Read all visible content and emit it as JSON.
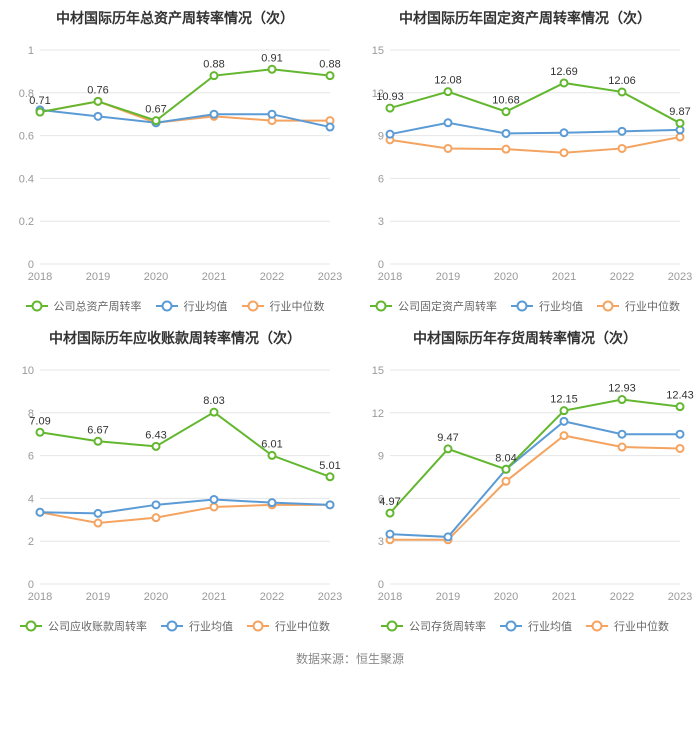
{
  "footer_text": "数据来源：恒生聚源",
  "global": {
    "background_color": "#ffffff",
    "grid_color": "#e6e6e6",
    "axis_text_color": "#999999",
    "label_text_color": "#333333",
    "title_fontsize": 14,
    "axis_fontsize": 11,
    "point_label_fontsize": 11,
    "line_width": 2,
    "marker_radius": 3.5,
    "categories": [
      "2018",
      "2019",
      "2020",
      "2021",
      "2022",
      "2023"
    ],
    "colors": {
      "company": "#63b72f",
      "avg": "#5b9bd5",
      "median": "#f4a460"
    },
    "legend_labels": {
      "avg": "行业均值",
      "median": "行业中位数"
    }
  },
  "charts": [
    {
      "id": "total_asset",
      "title": "中材国际历年总资产周转率情况（次）",
      "company_legend": "公司总资产周转率",
      "ylim": [
        0,
        1
      ],
      "yticks": [
        0,
        0.2,
        0.4,
        0.6,
        0.8,
        1
      ],
      "company": [
        0.71,
        0.76,
        0.67,
        0.88,
        0.91,
        0.88
      ],
      "avg": [
        0.72,
        0.69,
        0.66,
        0.7,
        0.7,
        0.64
      ],
      "median": [
        0.71,
        0.76,
        0.66,
        0.69,
        0.67,
        0.67
      ],
      "label_series": "company"
    },
    {
      "id": "fixed_asset",
      "title": "中材国际历年固定资产周转率情况（次）",
      "company_legend": "公司固定资产周转率",
      "ylim": [
        0,
        15
      ],
      "yticks": [
        0,
        3,
        6,
        9,
        12,
        15
      ],
      "company": [
        10.93,
        12.08,
        10.68,
        12.69,
        12.06,
        9.87
      ],
      "avg": [
        9.1,
        9.9,
        9.15,
        9.2,
        9.3,
        9.4
      ],
      "median": [
        8.7,
        8.1,
        8.05,
        7.8,
        8.1,
        8.9
      ],
      "label_series": "company"
    },
    {
      "id": "receivable",
      "title": "中材国际历年应收账款周转率情况（次）",
      "company_legend": "公司应收账款周转率",
      "ylim": [
        0,
        10
      ],
      "yticks": [
        0,
        2,
        4,
        6,
        8,
        10
      ],
      "company": [
        7.09,
        6.67,
        6.43,
        8.03,
        6.01,
        5.01
      ],
      "avg": [
        3.35,
        3.3,
        3.7,
        3.95,
        3.8,
        3.7
      ],
      "median": [
        3.35,
        2.85,
        3.1,
        3.6,
        3.7,
        3.7
      ],
      "label_series": "company"
    },
    {
      "id": "inventory",
      "title": "中材国际历年存货周转率情况（次）",
      "company_legend": "公司存货周转率",
      "ylim": [
        0,
        15
      ],
      "yticks": [
        0,
        3,
        6,
        9,
        12,
        15
      ],
      "company": [
        4.97,
        9.47,
        8.04,
        12.15,
        12.93,
        12.43
      ],
      "avg": [
        3.5,
        3.3,
        8.04,
        11.4,
        10.5,
        10.5
      ],
      "median": [
        3.1,
        3.1,
        7.2,
        10.4,
        9.6,
        9.5
      ],
      "label_series": "company",
      "extra_label": {
        "index": 2,
        "value": 8.04,
        "text": "8.04"
      }
    }
  ]
}
